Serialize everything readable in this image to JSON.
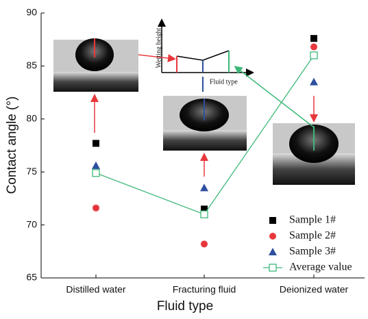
{
  "chart_data": {
    "type": "scatter",
    "xlabel": "Fluid type",
    "ylabel": "Contact angle (°)",
    "categories": [
      "Distilled water",
      "Fracturing fluid",
      "Deionized water"
    ],
    "series": [
      {
        "name": "Sample 1#",
        "color": "#000000",
        "marker": "square",
        "values": [
          77.7,
          71.5,
          87.6
        ]
      },
      {
        "name": "Sample 2#",
        "color": "#e8383d",
        "marker": "circle",
        "values": [
          71.6,
          68.2,
          86.8
        ]
      },
      {
        "name": "Sample 3#",
        "color": "#2e4f9e",
        "marker": "triangle",
        "values": [
          75.6,
          73.5,
          83.5
        ]
      },
      {
        "name": "Average value",
        "color": "#3cb878",
        "marker": "open-square",
        "line": true,
        "values": [
          74.9,
          71.0,
          86.0
        ]
      }
    ],
    "ylim": [
      65,
      90
    ],
    "yticks": [
      65,
      70,
      75,
      80,
      85,
      90
    ],
    "legend": "lower right",
    "annotations": [
      "Wetting height",
      "Fluid type"
    ]
  }
}
